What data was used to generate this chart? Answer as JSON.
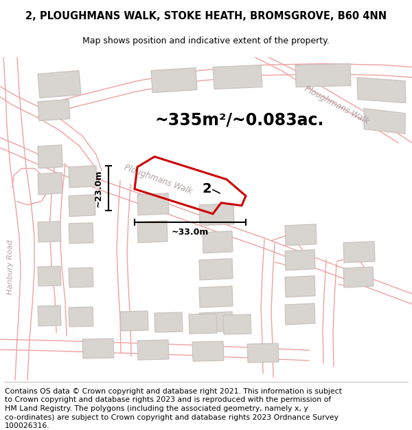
{
  "title": "2, PLOUGHMANS WALK, STOKE HEATH, BROMSGROVE, B60 4NN",
  "subtitle": "Map shows position and indicative extent of the property.",
  "area_text": "~335m²/~0.083ac.",
  "label_number": "2",
  "dim_horizontal": "~33.0m",
  "dim_vertical": "~23.0m",
  "bg_color": "#f7f4f2",
  "road_line_color": "#f0a0a0",
  "road_fill_color": "#f5e8e8",
  "building_fill": "#d8d4d0",
  "building_edge": "#c8c0bc",
  "plot_stroke": "#cc0000",
  "plot_fill": "none",
  "street_text_color": "#b0a0a0",
  "title_fontsize": 10.5,
  "subtitle_fontsize": 9,
  "area_fontsize": 17,
  "dim_fontsize": 9,
  "label_fontsize": 14,
  "street_fontsize": 8.5,
  "footer_lines": [
    "Contains OS data © Crown copyright and database right 2021. This information is subject",
    "to Crown copyright and database rights 2023 and is reproduced with the permission of",
    "HM Land Registry. The polygons (including the associated geometry, namely x, y",
    "co-ordinates) are subject to Crown copyright and database rights 2023 Ordnance Survey",
    "100026316."
  ]
}
